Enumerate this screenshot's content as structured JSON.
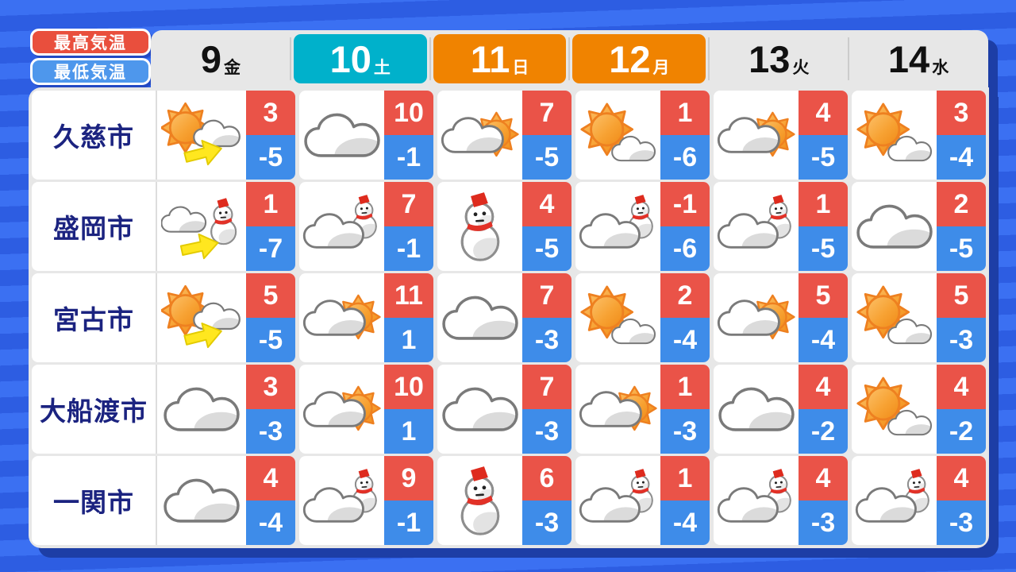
{
  "legend": {
    "high_label": "最高気温",
    "low_label": "最低気温"
  },
  "header": {
    "days": [
      {
        "num": "9",
        "dow": "金",
        "style": "weekday"
      },
      {
        "num": "10",
        "dow": "土",
        "style": "saturday"
      },
      {
        "num": "11",
        "dow": "日",
        "style": "holiday"
      },
      {
        "num": "12",
        "dow": "月",
        "style": "holiday"
      },
      {
        "num": "13",
        "dow": "火",
        "style": "weekday"
      },
      {
        "num": "14",
        "dow": "水",
        "style": "weekday"
      }
    ]
  },
  "table": {
    "rows": [
      {
        "city": "久慈市",
        "cells": [
          {
            "icon": "sun-then-cloud",
            "high": "3",
            "low": "-5"
          },
          {
            "icon": "cloud",
            "high": "10",
            "low": "-1"
          },
          {
            "icon": "cloud-sun",
            "high": "7",
            "low": "-5"
          },
          {
            "icon": "sun-cloud",
            "high": "1",
            "low": "-6"
          },
          {
            "icon": "cloud-sun",
            "high": "4",
            "low": "-5"
          },
          {
            "icon": "sun-cloud",
            "high": "3",
            "low": "-4"
          }
        ]
      },
      {
        "city": "盛岡市",
        "cells": [
          {
            "icon": "cloud-then-snow",
            "high": "1",
            "low": "-7"
          },
          {
            "icon": "cloud-snow",
            "high": "7",
            "low": "-1"
          },
          {
            "icon": "snow",
            "high": "4",
            "low": "-5"
          },
          {
            "icon": "cloud-snow",
            "high": "-1",
            "low": "-6"
          },
          {
            "icon": "cloud-snow",
            "high": "1",
            "low": "-5"
          },
          {
            "icon": "cloud",
            "high": "2",
            "low": "-5"
          }
        ]
      },
      {
        "city": "宮古市",
        "cells": [
          {
            "icon": "sun-then-cloud",
            "high": "5",
            "low": "-5"
          },
          {
            "icon": "cloud-sun",
            "high": "11",
            "low": "1"
          },
          {
            "icon": "cloud",
            "high": "7",
            "low": "-3"
          },
          {
            "icon": "sun-cloud",
            "high": "2",
            "low": "-4"
          },
          {
            "icon": "cloud-sun",
            "high": "5",
            "low": "-4"
          },
          {
            "icon": "sun-cloud",
            "high": "5",
            "low": "-3"
          }
        ]
      },
      {
        "city": "大船渡市",
        "cells": [
          {
            "icon": "cloud",
            "high": "3",
            "low": "-3"
          },
          {
            "icon": "cloud-sun",
            "high": "10",
            "low": "1"
          },
          {
            "icon": "cloud",
            "high": "7",
            "low": "-3"
          },
          {
            "icon": "cloud-sun",
            "high": "1",
            "low": "-3"
          },
          {
            "icon": "cloud",
            "high": "4",
            "low": "-2"
          },
          {
            "icon": "sun-cloud",
            "high": "4",
            "low": "-2"
          }
        ]
      },
      {
        "city": "一関市",
        "cells": [
          {
            "icon": "cloud",
            "high": "4",
            "low": "-4"
          },
          {
            "icon": "cloud-snow",
            "high": "9",
            "low": "-1"
          },
          {
            "icon": "snow",
            "high": "6",
            "low": "-3"
          },
          {
            "icon": "cloud-snow",
            "high": "1",
            "low": "-4"
          },
          {
            "icon": "cloud-snow",
            "high": "4",
            "low": "-3"
          },
          {
            "icon": "cloud-snow",
            "high": "4",
            "low": "-3"
          }
        ]
      }
    ]
  },
  "colors": {
    "high_bg": "#EA5348",
    "low_bg": "#3E8CE9",
    "saturday_bg": "#00B1CB",
    "holiday_bg": "#F08300",
    "legend_high_bg": "#E94F3D",
    "legend_low_bg": "#4E97EC",
    "city_text": "#1B2380",
    "day_text": "#111111",
    "panel_bg": "#E7E7E7",
    "divider": "#CCCCCC",
    "stripe_light": "#3B70F2",
    "stripe_dark": "#2D5DE2",
    "shadow": "#1D3EA6",
    "sun_orange": "#F7A233",
    "snowman_red": "#DE2B1E",
    "arrow_yellow": "#FFE71F"
  }
}
